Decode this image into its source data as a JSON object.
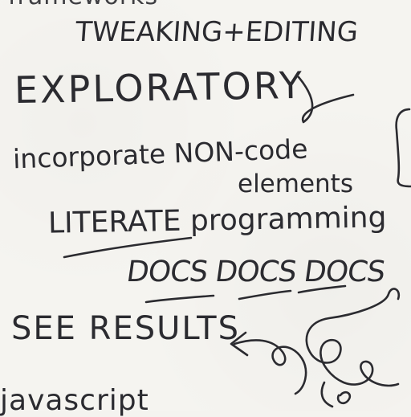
{
  "notes": {
    "line0": "frameworks",
    "line1": "TWEAKING+EDITING",
    "line2": "EXPLORATORY",
    "line3": "incorporate NON-code",
    "line4": "elements",
    "line5": "LITERATE programming",
    "line6": "DOCS DOCS DOCS",
    "line7": "SEE RESULTS",
    "line8": "javascript"
  },
  "colors": {
    "ink": "#2b2b30",
    "paper": "#f5f4f0"
  }
}
